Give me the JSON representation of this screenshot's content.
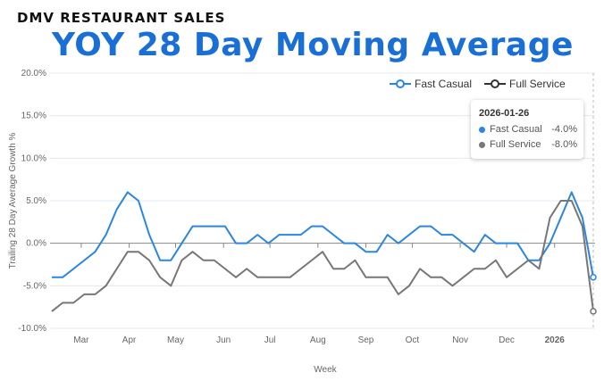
{
  "header": {
    "kicker": "DMV RESTAURANT SALES",
    "title": "YOY 28 Day Moving Average"
  },
  "tooltip": {
    "date": "2026-01-26",
    "rows": [
      {
        "name": "Fast Casual",
        "value": "-4.0%"
      },
      {
        "name": "Full Service",
        "value": "-8.0%"
      }
    ]
  },
  "chart_data": {
    "type": "line",
    "title": "YOY 28 Day Moving Average",
    "xlabel": "Week",
    "ylabel": "Trailing 28 Day Average Growth %",
    "ylim": [
      -10,
      20
    ],
    "yticks": [
      "-10.0%",
      "-5.0%",
      "0.0%",
      "5.0%",
      "10.0%",
      "15.0%",
      "20.0%"
    ],
    "xticks": [
      {
        "label": "Mar",
        "date": "2025-03-01"
      },
      {
        "label": "Apr",
        "date": "2025-04-01"
      },
      {
        "label": "May",
        "date": "2025-05-01"
      },
      {
        "label": "Jun",
        "date": "2025-06-01"
      },
      {
        "label": "Jul",
        "date": "2025-07-01"
      },
      {
        "label": "Aug",
        "date": "2025-08-01"
      },
      {
        "label": "Sep",
        "date": "2025-09-01"
      },
      {
        "label": "Oct",
        "date": "2025-10-01"
      },
      {
        "label": "Nov",
        "date": "2025-11-01"
      },
      {
        "label": "Dec",
        "date": "2025-12-01"
      },
      {
        "label": "2026",
        "date": "2026-01-01"
      }
    ],
    "grid": true,
    "legend": "top-right",
    "x": [
      "2025-02-10",
      "2025-02-17",
      "2025-02-24",
      "2025-03-03",
      "2025-03-10",
      "2025-03-17",
      "2025-03-24",
      "2025-03-31",
      "2025-04-07",
      "2025-04-14",
      "2025-04-21",
      "2025-04-28",
      "2025-05-05",
      "2025-05-12",
      "2025-05-19",
      "2025-05-26",
      "2025-06-02",
      "2025-06-09",
      "2025-06-16",
      "2025-06-23",
      "2025-06-30",
      "2025-07-07",
      "2025-07-14",
      "2025-07-21",
      "2025-07-28",
      "2025-08-04",
      "2025-08-11",
      "2025-08-18",
      "2025-08-25",
      "2025-09-01",
      "2025-09-08",
      "2025-09-15",
      "2025-09-22",
      "2025-09-29",
      "2025-10-06",
      "2025-10-13",
      "2025-10-20",
      "2025-10-27",
      "2025-11-03",
      "2025-11-10",
      "2025-11-17",
      "2025-11-24",
      "2025-12-01",
      "2025-12-08",
      "2025-12-15",
      "2025-12-22",
      "2025-12-29",
      "2026-01-05",
      "2026-01-12",
      "2026-01-19",
      "2026-01-26"
    ],
    "series": [
      {
        "name": "Fast Casual",
        "color": "#2a86e0",
        "values": [
          -4,
          -4,
          -3,
          -2,
          -1,
          1,
          4,
          6,
          5,
          1,
          -2,
          -2,
          0,
          2,
          2,
          2,
          2,
          0,
          0,
          1,
          0,
          1,
          1,
          1,
          2,
          2,
          1,
          0,
          0,
          -1,
          -1,
          1,
          0,
          1,
          2,
          2,
          1,
          1,
          0,
          -1,
          1,
          0,
          0,
          0,
          -2,
          -2,
          0,
          3,
          6,
          3,
          -4
        ]
      },
      {
        "name": "Full Service",
        "color": "#777777",
        "values": [
          -8,
          -7,
          -7,
          -6,
          -6,
          -5,
          -3,
          -1,
          -1,
          -2,
          -4,
          -5,
          -2,
          -1,
          -2,
          -2,
          -3,
          -4,
          -3,
          -4,
          -4,
          -4,
          -4,
          -3,
          -2,
          -1,
          -3,
          -3,
          -2,
          -4,
          -4,
          -4,
          -6,
          -5,
          -3,
          -4,
          -4,
          -5,
          -4,
          -3,
          -3,
          -2,
          -4,
          -3,
          -2,
          -3,
          3,
          5,
          5,
          2,
          -8
        ]
      }
    ]
  }
}
